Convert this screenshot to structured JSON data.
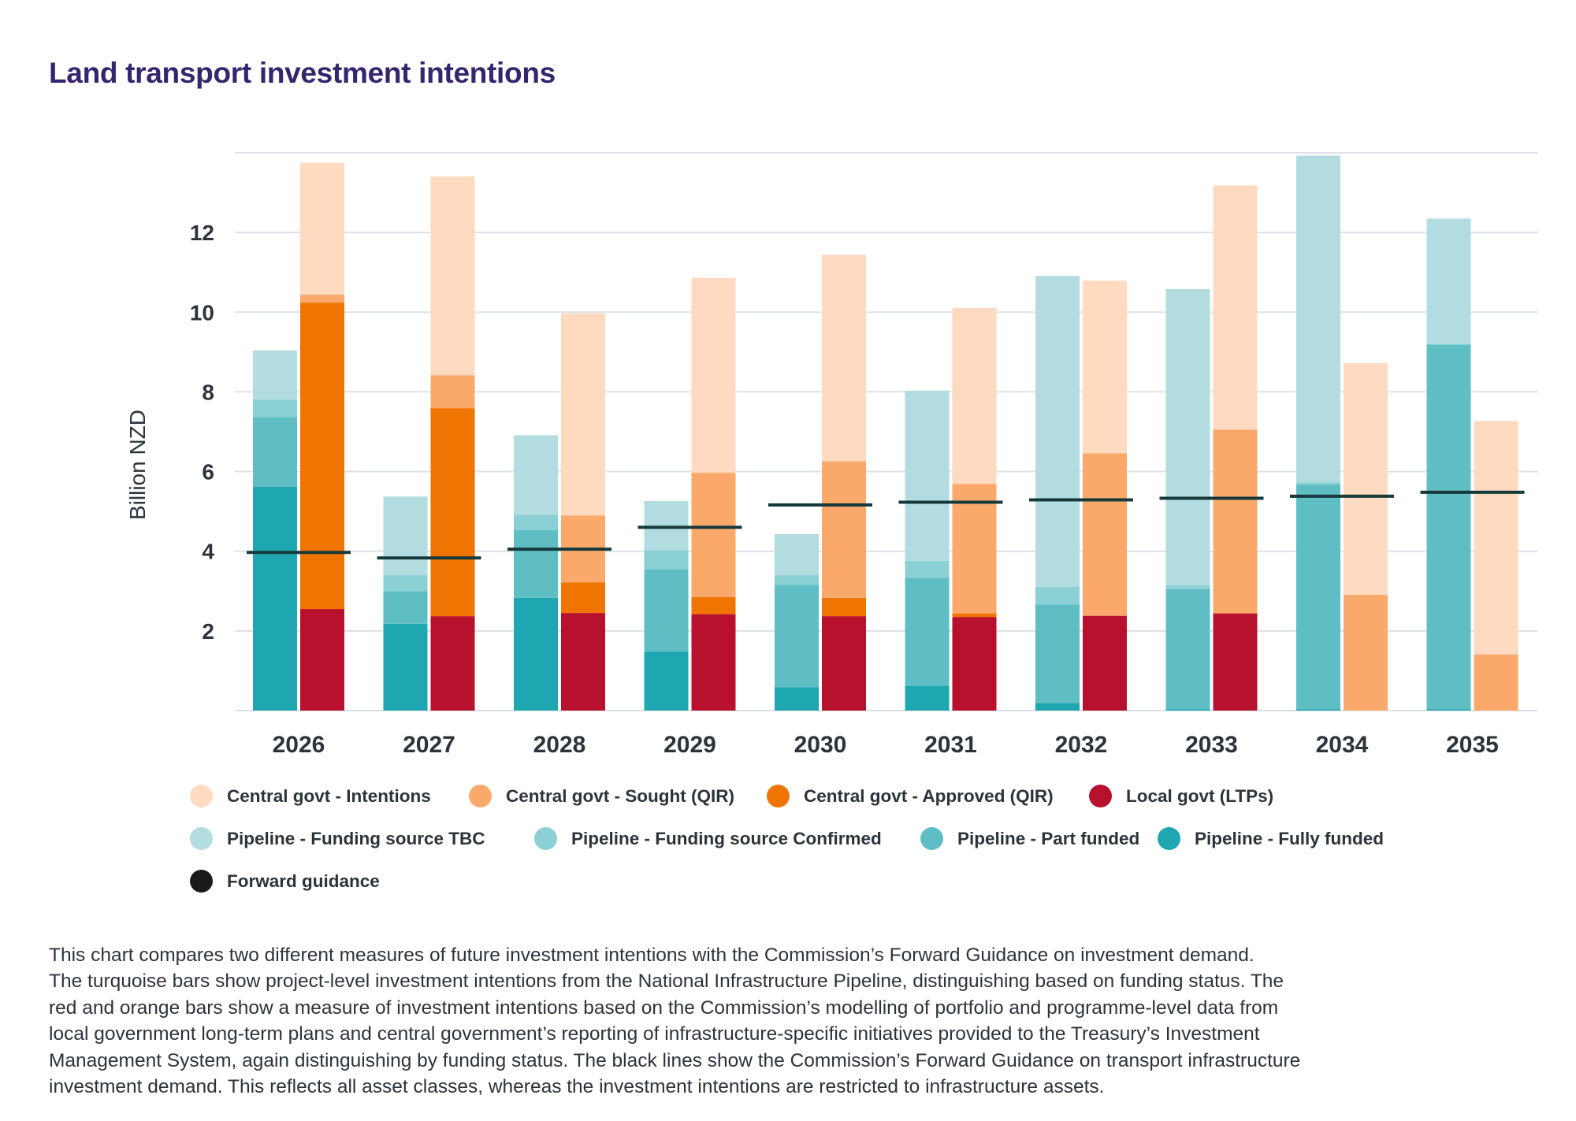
{
  "title": "Land transport investment intentions",
  "chart_data": {
    "type": "bar",
    "subtype": "grouped-stacked-bar-with-reference-lines",
    "title": "Land transport investment intentions",
    "xlabel": "",
    "ylabel": "Billion NZD",
    "ylim": [
      0,
      14
    ],
    "yticks": [
      2,
      4,
      6,
      8,
      10,
      12
    ],
    "grid": true,
    "categories": [
      "2026",
      "2027",
      "2028",
      "2029",
      "2030",
      "2031",
      "2032",
      "2033",
      "2034",
      "2035"
    ],
    "groups": [
      {
        "name": "Pipeline",
        "stack_order_bottom_to_top": [
          "Pipeline - Fully funded",
          "Pipeline - Part funded",
          "Pipeline - Funding source Confirmed",
          "Pipeline - Funding source TBC"
        ],
        "series": [
          {
            "name": "Pipeline - Fully funded",
            "color": "#1ea7b1",
            "values": [
              5.62,
              2.18,
              2.83,
              1.48,
              0.59,
              0.62,
              0.19,
              0.03,
              0.03,
              0.03
            ]
          },
          {
            "name": "Pipeline - Part funded",
            "color": "#5fbec4",
            "values": [
              1.75,
              0.82,
              1.7,
              2.06,
              2.57,
              2.71,
              2.47,
              3.02,
              5.65,
              9.16
            ]
          },
          {
            "name": "Pipeline - Funding source Confirmed",
            "color": "#8bd0d5",
            "values": [
              0.43,
              0.4,
              0.39,
              0.49,
              0.24,
              0.43,
              0.45,
              0.1,
              0.05,
              0.0
            ]
          },
          {
            "name": "Pipeline - Funding source TBC",
            "color": "#b2dcdf",
            "values": [
              1.24,
              1.97,
              1.99,
              1.23,
              1.03,
              4.27,
              7.8,
              7.43,
              8.2,
              3.16
            ]
          }
        ]
      },
      {
        "name": "Central and local govt",
        "stack_order_bottom_to_top": [
          "Local govt (LTPs)",
          "Central govt - Approved (QIR)",
          "Central govt - Sought (QIR)",
          "Central govt - Intentions"
        ],
        "series": [
          {
            "name": "Local govt (LTPs)",
            "color": "#b8112e",
            "values": [
              2.55,
              2.37,
              2.45,
              2.42,
              2.37,
              2.35,
              2.38,
              2.44,
              0.0,
              0.0
            ]
          },
          {
            "name": "Central govt - Approved (QIR)",
            "color": "#ef7401",
            "values": [
              7.69,
              5.22,
              0.77,
              0.43,
              0.46,
              0.09,
              0.0,
              0.0,
              0.0,
              0.0
            ]
          },
          {
            "name": "Central govt - Sought (QIR)",
            "color": "#fba96b",
            "values": [
              0.2,
              0.83,
              1.68,
              3.12,
              3.43,
              3.25,
              4.08,
              4.61,
              2.91,
              1.41
            ]
          },
          {
            "name": "Central govt - Intentions",
            "color": "#fedac1",
            "values": [
              3.31,
              4.99,
              5.07,
              4.89,
              5.18,
              4.42,
              4.33,
              6.13,
              5.81,
              5.86
            ]
          }
        ]
      }
    ],
    "reference_line": {
      "name": "Forward guidance",
      "color": "#163a3c",
      "values": [
        3.97,
        3.83,
        4.05,
        4.6,
        5.16,
        5.23,
        5.29,
        5.33,
        5.38,
        5.48
      ]
    },
    "legend": {
      "placement": "bottom",
      "rows": [
        [
          {
            "label": "Central govt - Intentions",
            "color": "#fedac1"
          },
          {
            "label": "Central govt - Sought (QIR)",
            "color": "#fba96b"
          },
          {
            "label": "Central govt - Approved (QIR)",
            "color": "#ef7401"
          },
          {
            "label": "Local govt (LTPs)",
            "color": "#b8112e"
          }
        ],
        [
          {
            "label": "Pipeline - Funding source TBC",
            "color": "#b2dcdf"
          },
          {
            "label": "Pipeline - Funding source Confirmed",
            "color": "#8bd0d5"
          },
          {
            "label": "Pipeline - Part funded",
            "color": "#5fbec4"
          },
          {
            "label": "Pipeline - Fully funded",
            "color": "#1ea7b1"
          }
        ],
        [
          {
            "label": "Forward guidance",
            "color": "#1a1a1a"
          }
        ]
      ]
    }
  },
  "caption": {
    "lines": [
      "This chart compares two different measures of future investment intentions with the Commission’s Forward Guidance on investment demand.",
      "The turquoise bars show project-level investment intentions from the National Infrastructure Pipeline, distinguishing based on funding status. The",
      "red and orange bars show a measure of investment intentions based on the Commission’s modelling of portfolio and programme-level data from",
      "local government long-term plans and central government’s reporting of infrastructure-specific initiatives provided to the Treasury’s Investment",
      "Management System, again distinguishing by funding status. The black lines show the Commission’s Forward Guidance on transport infrastructure",
      "investment demand. This reflects all asset classes, whereas the investment intentions are restricted to infrastructure assets."
    ]
  },
  "colors": {
    "title": "#35256e",
    "text": "#2b333b",
    "gridline": "#dde1e5"
  }
}
